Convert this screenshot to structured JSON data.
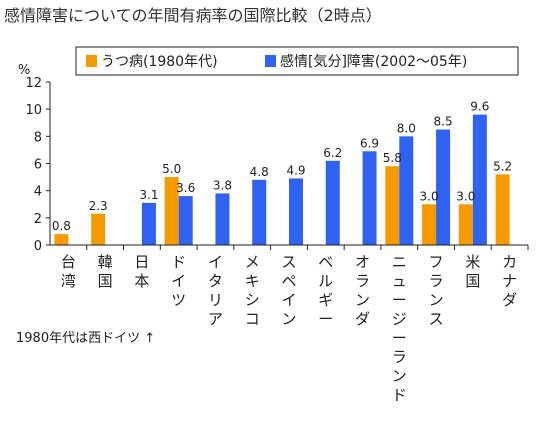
{
  "chart_data": {
    "type": "bar",
    "title": "感情障害についての年間有病率の国際比較（2時点）",
    "ylabel": "%",
    "ylim": [
      0,
      12
    ],
    "yticks": [
      0,
      2,
      4,
      6,
      8,
      10,
      12
    ],
    "grid": false,
    "legend_position": "top",
    "categories": [
      "台湾",
      "韓国",
      "日本",
      "ドイツ",
      "イタリア",
      "メキシコ",
      "スペイン",
      "ベルギー",
      "オランダ",
      "ニュージーランド",
      "フランス",
      "米国",
      "カナダ"
    ],
    "series": [
      {
        "name": "うつ病(1980年代)",
        "color": "#f59a00",
        "values": [
          0.8,
          2.3,
          null,
          5.0,
          null,
          null,
          null,
          null,
          null,
          5.8,
          3.0,
          3.0,
          5.2
        ],
        "labels": [
          "0.8",
          "2.3",
          "",
          "5.0",
          "",
          "",
          "",
          "",
          "",
          "5.8",
          "3.0",
          "3.0",
          "5.2"
        ]
      },
      {
        "name": "感情[気分]障害(2002〜05年)",
        "color": "#2f62f0",
        "values": [
          null,
          null,
          3.1,
          3.6,
          3.8,
          4.8,
          4.9,
          6.2,
          6.9,
          8.0,
          8.5,
          9.6,
          null
        ],
        "labels": [
          "",
          "",
          "3.1",
          "3.6",
          "3.8",
          "4.8",
          "4.9",
          "6.2",
          "6.9",
          "8.0",
          "8.5",
          "9.6",
          ""
        ]
      }
    ],
    "annotation": "1980年代は西ドイツ ↑"
  }
}
